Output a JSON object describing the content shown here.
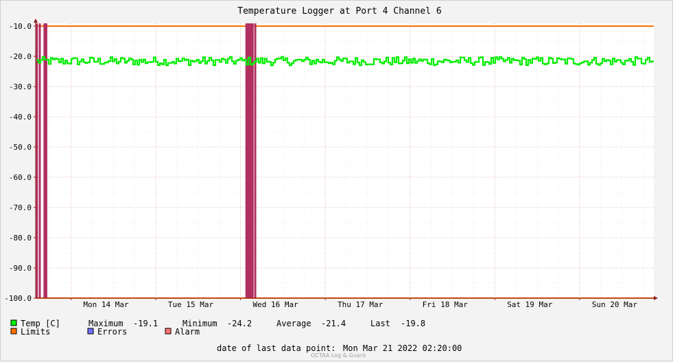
{
  "chart_data": {
    "type": "line",
    "title": "Temperature Logger at Port 4 Channel 6",
    "ylim": [
      -100.0,
      -10.0
    ],
    "yticks": [
      "-10.0",
      "-20.0",
      "-30.0",
      "-40.0",
      "-50.0",
      "-60.0",
      "-70.0",
      "-80.0",
      "-90.0",
      "-100.0"
    ],
    "xlim": [
      "2022-03-13T14:00",
      "2022-03-20T21:00"
    ],
    "xticks": [
      {
        "label": "Mon 14 Mar",
        "t": "2022-03-14T00:00"
      },
      {
        "label": "Tue 15 Mar",
        "t": "2022-03-15T00:00"
      },
      {
        "label": "Wed 16 Mar",
        "t": "2022-03-16T00:00"
      },
      {
        "label": "Thu 17 Mar",
        "t": "2022-03-17T00:00"
      },
      {
        "label": "Fri 18 Mar",
        "t": "2022-03-18T00:00"
      },
      {
        "label": "Sat 19 Mar",
        "t": "2022-03-19T00:00"
      },
      {
        "label": "Sun 20 Mar",
        "t": "2022-03-20T00:00"
      }
    ],
    "grid": true,
    "series": [
      {
        "name": "Temp [C]",
        "color": "#00ee00",
        "low": -23.0,
        "high": -20.2,
        "mean": -21.4
      },
      {
        "name": "Limits",
        "color": "#ff7000",
        "values": [
          -10.0,
          -100.0
        ]
      },
      {
        "name": "Errors",
        "color": "#7070ff"
      },
      {
        "name": "Alarm",
        "color": "#ff7070",
        "bar_color": "#b03060",
        "events": [
          "2022-03-13T14:20",
          "2022-03-13T15:10",
          "2022-03-13T16:30",
          "2022-03-13T17:00",
          "2022-03-16T01:40",
          "2022-03-16T02:10",
          "2022-03-16T02:30",
          "2022-03-16T03:00",
          "2022-03-16T03:25",
          "2022-03-16T04:10"
        ]
      }
    ]
  },
  "legend": {
    "temp_label": "Temp [C]",
    "maximum_label": "Maximum",
    "maximum_value": "-19.1",
    "minimum_label": "Minimum",
    "minimum_value": "-24.2",
    "average_label": "Average",
    "average_value": "-21.4",
    "last_label": "Last",
    "last_value": "-19.8",
    "limits_label": "Limits",
    "errors_label": "Errors",
    "alarm_label": "Alarm"
  },
  "footer": {
    "date_label": "date of last data point:",
    "date_value": "Mon Mar 21 2022 02:20:00",
    "watermark": "OCTAA Log & Guard"
  }
}
